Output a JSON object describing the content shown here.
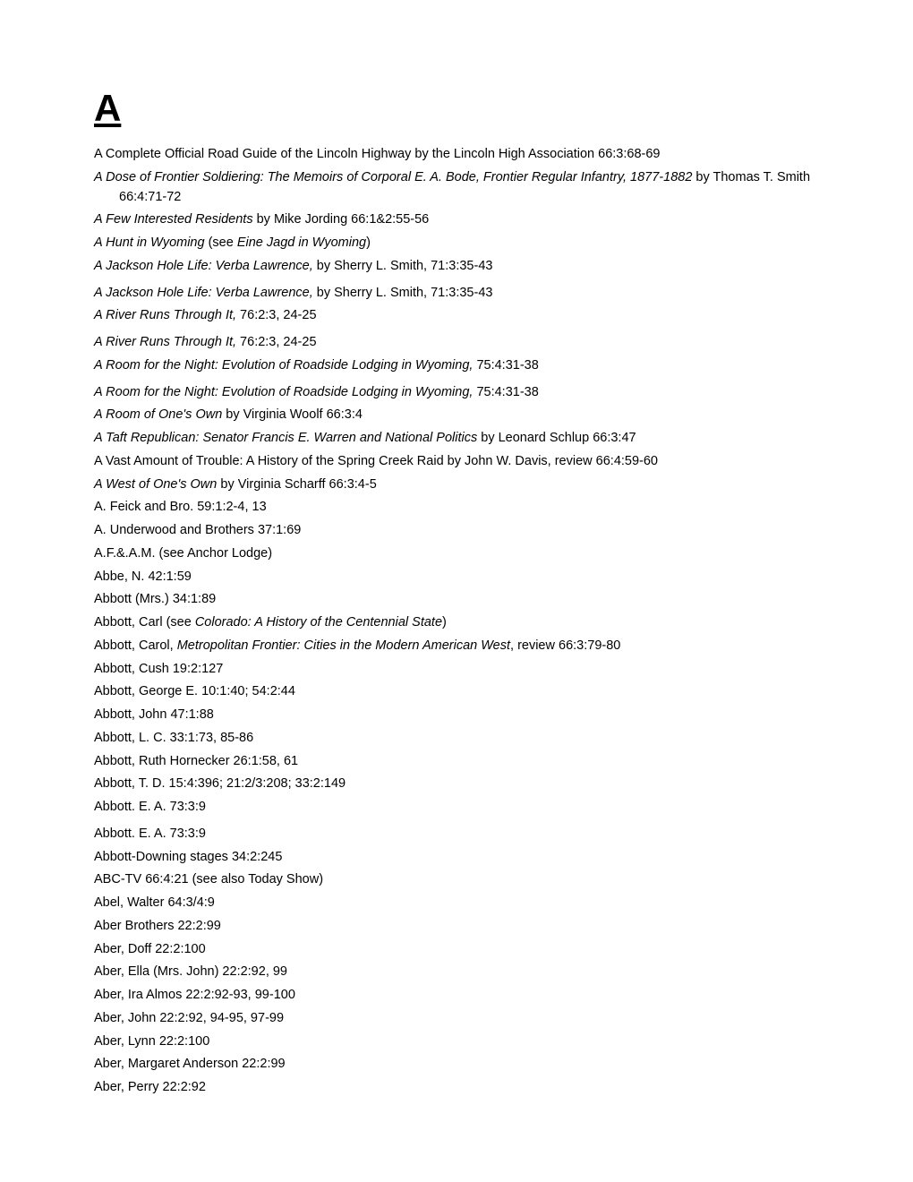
{
  "heading": "A",
  "entries": [
    {
      "segments": [
        {
          "text": "A Complete Official Road Guide of the Lincoln Highway by the Lincoln High Association 66:3:68-69",
          "italic": false
        }
      ],
      "gap": false
    },
    {
      "segments": [
        {
          "text": "A Dose of Frontier Soldiering: The Memoirs of Corporal E. A. Bode, Frontier Regular Infantry, 1877-1882",
          "italic": true
        },
        {
          "text": " by Thomas T. Smith 66:4:71-72",
          "italic": false
        }
      ],
      "gap": false
    },
    {
      "segments": [
        {
          "text": "A Few Interested Residents",
          "italic": true
        },
        {
          "text": " by Mike Jording 66:1&2:55-56",
          "italic": false
        }
      ],
      "gap": false
    },
    {
      "segments": [
        {
          "text": "A Hunt in Wyoming",
          "italic": true
        },
        {
          "text": " (see ",
          "italic": false
        },
        {
          "text": "Eine Jagd in Wyoming",
          "italic": true
        },
        {
          "text": ")",
          "italic": false
        }
      ],
      "gap": false
    },
    {
      "segments": [
        {
          "text": "A Jackson Hole Life: Verba Lawrence,",
          "italic": true
        },
        {
          "text": " by Sherry L. Smith, 71:3:35-43",
          "italic": false
        }
      ],
      "gap": false
    },
    {
      "segments": [
        {
          "text": "A Jackson Hole Life: Verba Lawrence,",
          "italic": true
        },
        {
          "text": " by Sherry L. Smith, 71:3:35-43",
          "italic": false
        }
      ],
      "gap": true
    },
    {
      "segments": [
        {
          "text": "A River Runs Through It,",
          "italic": true
        },
        {
          "text": " 76:2:3, 24-25",
          "italic": false
        }
      ],
      "gap": false
    },
    {
      "segments": [
        {
          "text": "A River Runs Through It,",
          "italic": true
        },
        {
          "text": " 76:2:3, 24-25",
          "italic": false
        }
      ],
      "gap": true
    },
    {
      "segments": [
        {
          "text": "A Room for the Night: Evolution of Roadside Lodging in Wyoming,",
          "italic": true
        },
        {
          "text": " 75:4:31-38",
          "italic": false
        }
      ],
      "gap": false
    },
    {
      "segments": [
        {
          "text": "A Room for the Night: Evolution of Roadside Lodging in Wyoming,",
          "italic": true
        },
        {
          "text": " 75:4:31-38",
          "italic": false
        }
      ],
      "gap": true
    },
    {
      "segments": [
        {
          "text": "A Room of One's Own",
          "italic": true
        },
        {
          "text": " by Virginia Woolf 66:3:4",
          "italic": false
        }
      ],
      "gap": false
    },
    {
      "segments": [
        {
          "text": "A Taft Republican: Senator Francis E. Warren and National Politics",
          "italic": true
        },
        {
          "text": " by Leonard Schlup 66:3:47",
          "italic": false
        }
      ],
      "gap": false
    },
    {
      "segments": [
        {
          "text": "A Vast Amount of Trouble: A History of the Spring Creek Raid by John W. Davis, review 66:4:59-60",
          "italic": false
        }
      ],
      "gap": false
    },
    {
      "segments": [
        {
          "text": "A West of One's Own",
          "italic": true
        },
        {
          "text": " by Virginia Scharff 66:3:4-5",
          "italic": false
        }
      ],
      "gap": false
    },
    {
      "segments": [
        {
          "text": "A. Feick and Bro. 59:1:2-4, 13",
          "italic": false
        }
      ],
      "gap": false
    },
    {
      "segments": [
        {
          "text": "A. Underwood and Brothers 37:1:69",
          "italic": false
        }
      ],
      "gap": false
    },
    {
      "segments": [
        {
          "text": "A.F.&.A.M. (see Anchor Lodge)",
          "italic": false
        }
      ],
      "gap": false
    },
    {
      "segments": [
        {
          "text": "Abbe, N. 42:1:59",
          "italic": false
        }
      ],
      "gap": false
    },
    {
      "segments": [
        {
          "text": "Abbott (Mrs.) 34:1:89",
          "italic": false
        }
      ],
      "gap": false
    },
    {
      "segments": [
        {
          "text": "Abbott, Carl (see ",
          "italic": false
        },
        {
          "text": "Colorado: A History of the Centennial State",
          "italic": true
        },
        {
          "text": ")",
          "italic": false
        }
      ],
      "gap": false
    },
    {
      "segments": [
        {
          "text": "Abbott, Carol, ",
          "italic": false
        },
        {
          "text": "Metropolitan Frontier: Cities in the Modern American West",
          "italic": true
        },
        {
          "text": ", review 66:3:79-80",
          "italic": false
        }
      ],
      "gap": false
    },
    {
      "segments": [
        {
          "text": "Abbott, Cush 19:2:127",
          "italic": false
        }
      ],
      "gap": false
    },
    {
      "segments": [
        {
          "text": "Abbott, George E. 10:1:40; 54:2:44",
          "italic": false
        }
      ],
      "gap": false
    },
    {
      "segments": [
        {
          "text": "Abbott, John 47:1:88",
          "italic": false
        }
      ],
      "gap": false
    },
    {
      "segments": [
        {
          "text": "Abbott, L. C. 33:1:73, 85-86",
          "italic": false
        }
      ],
      "gap": false
    },
    {
      "segments": [
        {
          "text": "Abbott, Ruth Hornecker 26:1:58, 61",
          "italic": false
        }
      ],
      "gap": false
    },
    {
      "segments": [
        {
          "text": "Abbott, T. D. 15:4:396; 21:2/3:208; 33:2:149",
          "italic": false
        }
      ],
      "gap": false
    },
    {
      "segments": [
        {
          "text": "Abbott. E. A. 73:3:9",
          "italic": false
        }
      ],
      "gap": false
    },
    {
      "segments": [
        {
          "text": "Abbott. E. A. 73:3:9",
          "italic": false
        }
      ],
      "gap": true
    },
    {
      "segments": [
        {
          "text": "Abbott-Downing stages 34:2:245",
          "italic": false
        }
      ],
      "gap": false
    },
    {
      "segments": [
        {
          "text": "ABC-TV 66:4:21 (see also Today Show)",
          "italic": false
        }
      ],
      "gap": false
    },
    {
      "segments": [
        {
          "text": "Abel, Walter 64:3/4:9",
          "italic": false
        }
      ],
      "gap": false
    },
    {
      "segments": [
        {
          "text": "Aber Brothers 22:2:99",
          "italic": false
        }
      ],
      "gap": false
    },
    {
      "segments": [
        {
          "text": "Aber, Doff 22:2:100",
          "italic": false
        }
      ],
      "gap": false
    },
    {
      "segments": [
        {
          "text": "Aber, Ella (Mrs. John) 22:2:92, 99",
          "italic": false
        }
      ],
      "gap": false
    },
    {
      "segments": [
        {
          "text": "Aber, Ira Almos 22:2:92-93, 99-100",
          "italic": false
        }
      ],
      "gap": false
    },
    {
      "segments": [
        {
          "text": "Aber, John 22:2:92, 94-95, 97-99",
          "italic": false
        }
      ],
      "gap": false
    },
    {
      "segments": [
        {
          "text": "Aber, Lynn 22:2:100",
          "italic": false
        }
      ],
      "gap": false
    },
    {
      "segments": [
        {
          "text": "Aber, Margaret Anderson 22:2:99",
          "italic": false
        }
      ],
      "gap": false
    },
    {
      "segments": [
        {
          "text": "Aber, Perry 22:2:92",
          "italic": false
        }
      ],
      "gap": false
    }
  ],
  "styles": {
    "font_family": "Arial, Helvetica, sans-serif",
    "body_font_size": 14.5,
    "heading_font_size": 42,
    "text_color": "#000000",
    "background_color": "#ffffff",
    "line_height": 1.5,
    "hanging_indent": 28
  }
}
